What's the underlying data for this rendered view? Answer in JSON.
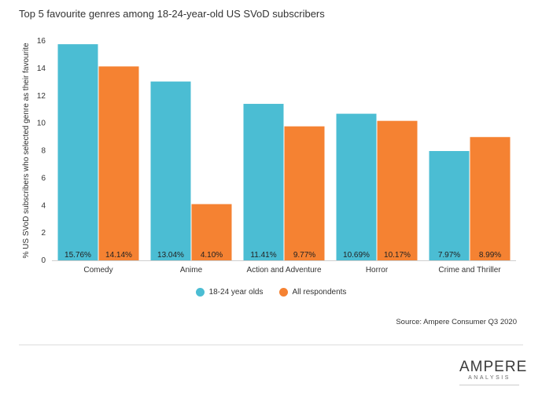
{
  "title": "Top 5 favourite genres among 18-24-year-old US SVoD subscribers",
  "source": "Source: Ampere Consumer Q3 2020",
  "logo": {
    "main": "AMPERE",
    "sub": "ANALYSIS"
  },
  "colors": {
    "series1": "#4bbdd3",
    "series2": "#f58232"
  },
  "chart_data": {
    "type": "bar",
    "categories": [
      "Comedy",
      "Anime",
      "Action and Adventure",
      "Horror",
      "Crime and Thriller"
    ],
    "series": [
      {
        "name": "18-24 year olds",
        "values": [
          15.76,
          13.04,
          11.41,
          10.69,
          7.97
        ],
        "labels": [
          "15.76%",
          "13.04%",
          "11.41%",
          "10.69%",
          "7.97%"
        ]
      },
      {
        "name": "All respondents",
        "values": [
          14.14,
          4.1,
          9.77,
          10.17,
          8.99
        ],
        "labels": [
          "14.14%",
          "4.10%",
          "9.77%",
          "10.17%",
          "8.99%"
        ]
      }
    ],
    "yticks": [
      "0",
      "2",
      "4",
      "6",
      "8",
      "10",
      "12",
      "14",
      "16"
    ],
    "ylim": [
      0,
      16
    ],
    "ylabel": "% US SVoD subscribers who selected genre as their favourite",
    "xlabel": "",
    "legend": "bottom-center"
  }
}
